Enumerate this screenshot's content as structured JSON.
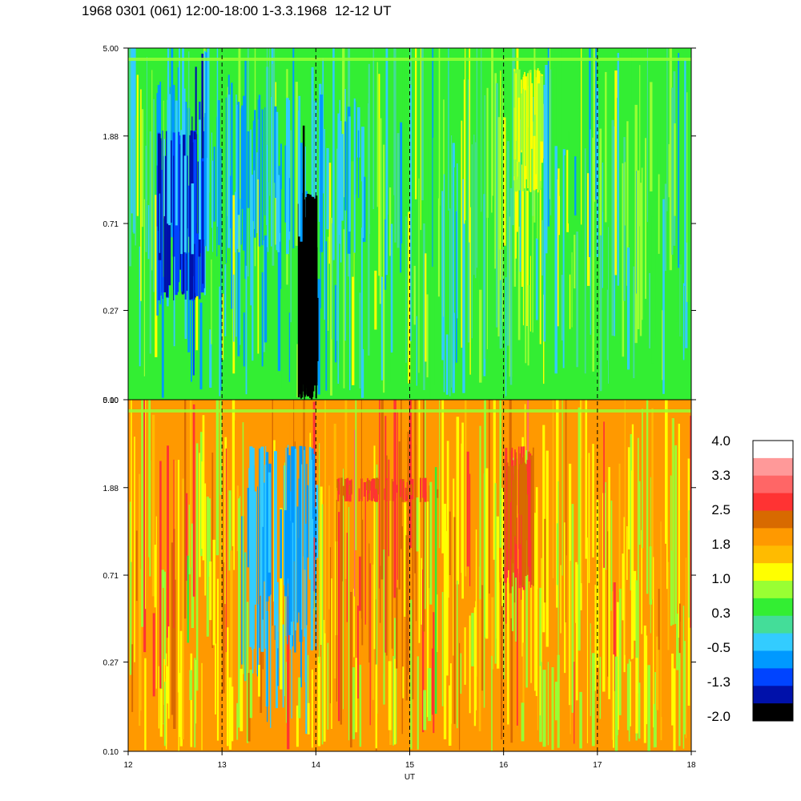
{
  "title": "1968 0301 (061) 12:00-18:00 1-3.3.1968  12-12 UT",
  "chart_data": {
    "type": "heatmap",
    "title": "1968 0301 (061) 12:00-18:00 1-3.3.1968  12-12 UT",
    "xlabel": "UT",
    "x_ticks": [
      "12",
      "13",
      "14",
      "15",
      "16",
      "17",
      "18"
    ],
    "xlim": [
      12,
      18
    ],
    "dashed_vertical_lines_at": [
      13,
      14,
      15,
      16,
      17
    ],
    "panels": [
      {
        "name": "",
        "y_ticks": [
          "5.00",
          "1.88",
          "0.71",
          "0.27",
          "0.10"
        ],
        "ylim": [
          0.1,
          5.0
        ],
        "y_scale": "log",
        "background_level": 0.3,
        "features": [
          {
            "x": [
              12.3,
              12.8
            ],
            "ylim": [
              0.3,
              2.0
            ],
            "level": -1.3
          },
          {
            "x": [
              13.8,
              14.0
            ],
            "ylim": [
              0.1,
              1.0
            ],
            "level": -2.0
          },
          {
            "x": [
              12.3,
              14.5
            ],
            "ylim": [
              0.5,
              3.0
            ],
            "level": -0.5
          },
          {
            "x": [
              16.1,
              16.4
            ],
            "ylim": [
              1.0,
              4.0
            ],
            "level": 1.0
          }
        ]
      },
      {
        "name": "",
        "y_ticks": [
          "5.00",
          "1.88",
          "0.71",
          "0.27",
          "0.10"
        ],
        "ylim": [
          0.1,
          5.0
        ],
        "y_scale": "log",
        "background_level": 1.8,
        "features": [
          {
            "x": [
              12.0,
              18.0
            ],
            "ylim": [
              0.1,
              0.3
            ],
            "level": 1.0
          },
          {
            "x": [
              13.2,
              14.0
            ],
            "ylim": [
              0.3,
              3.0
            ],
            "level": -0.5
          },
          {
            "x": [
              14.2,
              15.3
            ],
            "ylim": [
              1.6,
              2.1
            ],
            "level": 2.5
          },
          {
            "x": [
              16.0,
              16.3
            ],
            "ylim": [
              0.6,
              3.0
            ],
            "level": 2.5
          }
        ]
      }
    ],
    "colorbar": {
      "labels": [
        "4.0",
        "3.3",
        "2.5",
        "1.8",
        "1.0",
        "0.3",
        "-0.5",
        "-1.3",
        "-2.0"
      ],
      "colors": [
        "#ffffff",
        "#ff9999",
        "#ff6666",
        "#ff3333",
        "#d86a00",
        "#ff9900",
        "#ffbb00",
        "#ffff00",
        "#99ff33",
        "#33ee33",
        "#44dd99",
        "#33ccff",
        "#0099ff",
        "#0044ff",
        "#0011aa",
        "#000000"
      ]
    }
  }
}
